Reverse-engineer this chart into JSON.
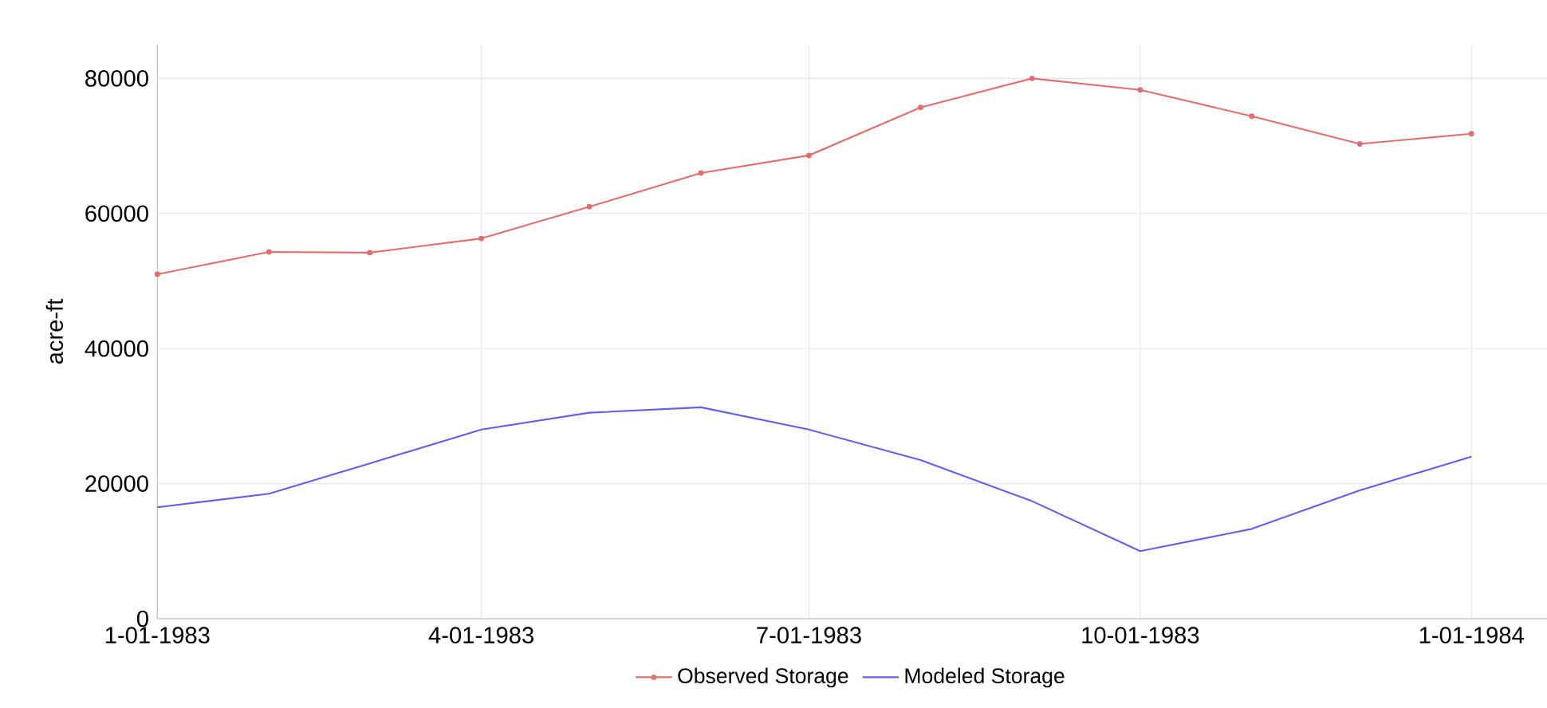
{
  "chart_data": {
    "type": "line",
    "ylabel": "acre-ft",
    "x": [
      "1983-01-01",
      "1983-02-01",
      "1983-03-01",
      "1983-04-01",
      "1983-05-01",
      "1983-06-01",
      "1983-07-01",
      "1983-08-01",
      "1983-09-01",
      "1983-10-01",
      "1983-11-01",
      "1983-12-01",
      "1984-01-01"
    ],
    "series": [
      {
        "name": "Observed Storage",
        "color": "#e07070",
        "marker": "circle",
        "values": [
          51000,
          54300,
          54200,
          56300,
          61000,
          66000,
          68600,
          75700,
          80000,
          78300,
          74400,
          70300,
          71800
        ]
      },
      {
        "name": "Modeled Storage",
        "color": "#6060e8",
        "marker": "none",
        "values": [
          16500,
          18500,
          23000,
          28000,
          30500,
          31300,
          28000,
          23500,
          17400,
          10000,
          13300,
          19000,
          24000
        ]
      }
    ],
    "xlim": [
      "1983-01-01",
      "1984-01-22"
    ],
    "xticks": [
      {
        "value": "1983-01-01",
        "label": "1-01-1983"
      },
      {
        "value": "1983-04-01",
        "label": "4-01-1983"
      },
      {
        "value": "1983-07-01",
        "label": "7-01-1983"
      },
      {
        "value": "1983-10-01",
        "label": "10-01-1983"
      },
      {
        "value": "1984-01-01",
        "label": "1-01-1984"
      }
    ],
    "ylim": [
      0,
      85000
    ],
    "yticks": [
      0,
      20000,
      40000,
      60000,
      80000
    ],
    "grid": true,
    "legend": "bottom"
  }
}
